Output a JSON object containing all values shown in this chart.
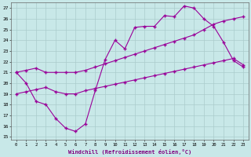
{
  "xlabel": "Windchill (Refroidissement éolien,°C)",
  "hours": [
    0,
    1,
    2,
    3,
    4,
    5,
    6,
    7,
    8,
    9,
    10,
    11,
    12,
    13,
    14,
    15,
    16,
    17,
    18,
    19,
    20,
    21,
    22,
    23
  ],
  "line_zigzag": [
    21.0,
    20.0,
    18.3,
    18.0,
    16.7,
    15.8,
    15.5,
    16.2,
    19.3,
    22.2,
    24.0,
    23.2,
    25.2,
    25.3,
    25.3,
    26.3,
    26.2,
    27.2,
    27.0,
    26.0,
    25.3,
    23.8,
    22.1,
    21.5
  ],
  "line_lower": [
    19.0,
    19.2,
    19.4,
    19.6,
    19.2,
    19.0,
    19.0,
    19.3,
    19.5,
    19.7,
    19.9,
    20.1,
    20.3,
    20.5,
    20.7,
    20.9,
    21.1,
    21.3,
    21.5,
    21.7,
    21.9,
    22.1,
    22.3,
    21.7
  ],
  "line_upper": [
    21.0,
    21.2,
    21.4,
    21.0,
    21.0,
    21.0,
    21.0,
    21.2,
    21.5,
    21.8,
    22.1,
    22.4,
    22.7,
    23.0,
    23.3,
    23.6,
    23.9,
    24.2,
    24.5,
    25.0,
    25.5,
    25.8,
    26.0,
    26.2
  ],
  "color": "#990099",
  "bg_color": "#c8e8e8",
  "grid_color": "#aacccc",
  "ylim_min": 15,
  "ylim_max": 27,
  "yticks": [
    15,
    16,
    17,
    18,
    19,
    20,
    21,
    22,
    23,
    24,
    25,
    26,
    27
  ]
}
